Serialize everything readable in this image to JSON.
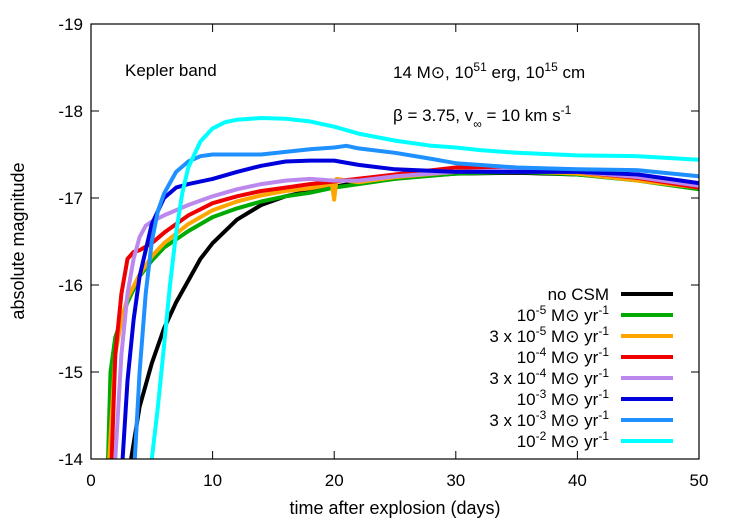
{
  "chart_data": {
    "type": "line",
    "title": "",
    "xlabel": "time after explosion (days)",
    "ylabel": "absolute magnitude",
    "xlim": [
      0,
      50
    ],
    "ylim": [
      -14,
      -19
    ],
    "y_inverted": true,
    "xticks": [
      0,
      10,
      20,
      30,
      40,
      50
    ],
    "xtick_labels": [
      "0",
      "10",
      "20",
      "30",
      "40",
      "50"
    ],
    "yticks": [
      -14,
      -15,
      -16,
      -17,
      -18,
      -19
    ],
    "ytick_labels": [
      "-14",
      "-15",
      "-16",
      "-17",
      "-18",
      "-19"
    ],
    "grid": false,
    "legend_position": "bottom-right",
    "annotations": {
      "band": "Kepler band",
      "params_line1": "14 M⊙, 10^51 erg, 10^15 cm",
      "params_line2": "β = 3.75, v∞ = 10 km s^-1"
    },
    "series": [
      {
        "name": "no CSM",
        "color": "#000000",
        "x": [
          3.3,
          4.0,
          5.0,
          6.0,
          7.0,
          8.0,
          9.0,
          10.0,
          12.0,
          14.0,
          16.0,
          18.0,
          20.0,
          22.0,
          25.0,
          28.0,
          30.0,
          35.0,
          40.0,
          45.0,
          50.0
        ],
        "y": [
          -14.0,
          -14.6,
          -15.1,
          -15.5,
          -15.8,
          -16.05,
          -16.3,
          -16.48,
          -16.75,
          -16.92,
          -17.02,
          -17.08,
          -17.13,
          -17.18,
          -17.23,
          -17.26,
          -17.28,
          -17.29,
          -17.27,
          -17.22,
          -17.14
        ]
      },
      {
        "name": "10^-5 M⊙ yr^-1",
        "color": "#00aa00",
        "x": [
          1.4,
          1.6,
          2.0,
          3.0,
          4.0,
          5.0,
          6.0,
          8.0,
          10.0,
          12.0,
          14.0,
          16.0,
          18.0,
          20.0,
          25.0,
          30.0,
          35.0,
          40.0,
          45.0,
          50.0
        ],
        "y": [
          -14.0,
          -15.0,
          -15.4,
          -15.8,
          -16.1,
          -16.28,
          -16.43,
          -16.62,
          -16.78,
          -16.88,
          -16.96,
          -17.02,
          -17.06,
          -17.12,
          -17.22,
          -17.28,
          -17.3,
          -17.27,
          -17.2,
          -17.1
        ]
      },
      {
        "name": "3 x 10^-5 M⊙ yr^-1",
        "color": "#ffa500",
        "x": [
          1.5,
          2.0,
          2.5,
          3.0,
          4.0,
          5.0,
          6.0,
          8.0,
          10.0,
          12.0,
          14.0,
          16.0,
          18.0,
          19.8,
          20.0,
          20.2,
          22.0,
          25.0,
          30.0,
          35.0,
          40.0,
          45.0,
          50.0
        ],
        "y": [
          -14.0,
          -15.2,
          -15.6,
          -15.85,
          -16.12,
          -16.33,
          -16.48,
          -16.7,
          -16.86,
          -16.96,
          -17.03,
          -17.08,
          -17.11,
          -17.16,
          -16.98,
          -17.22,
          -17.18,
          -17.24,
          -17.3,
          -17.31,
          -17.28,
          -17.2,
          -17.12
        ]
      },
      {
        "name": "10^-4 M⊙ yr^-1",
        "color": "#ee0000",
        "x": [
          1.7,
          2.0,
          2.5,
          3.0,
          3.5,
          4.0,
          5.0,
          6.0,
          8.0,
          10.0,
          12.0,
          14.0,
          16.0,
          18.0,
          20.0,
          25.0,
          30.0,
          35.0,
          40.0,
          45.0,
          50.0
        ],
        "y": [
          -14.0,
          -15.2,
          -15.9,
          -16.3,
          -16.38,
          -16.4,
          -16.48,
          -16.6,
          -16.8,
          -16.94,
          -17.02,
          -17.08,
          -17.12,
          -17.16,
          -17.19,
          -17.27,
          -17.35,
          -17.34,
          -17.3,
          -17.23,
          -17.12
        ]
      },
      {
        "name": "3 x 10^-4 M⊙ yr^-1",
        "color": "#bb88ee",
        "x": [
          2.0,
          2.5,
          3.0,
          3.5,
          4.0,
          4.5,
          5.0,
          6.0,
          8.0,
          10.0,
          12.0,
          14.0,
          16.0,
          18.0,
          20.0,
          22.0,
          25.0,
          30.0,
          35.0,
          40.0,
          45.0,
          50.0
        ],
        "y": [
          -14.0,
          -15.2,
          -15.9,
          -16.3,
          -16.55,
          -16.68,
          -16.73,
          -16.8,
          -16.92,
          -17.02,
          -17.1,
          -17.16,
          -17.2,
          -17.22,
          -17.2,
          -17.2,
          -17.25,
          -17.3,
          -17.32,
          -17.3,
          -17.24,
          -17.14
        ]
      },
      {
        "name": "10^-3 M⊙ yr^-1",
        "color": "#0000dd",
        "x": [
          2.6,
          3.0,
          3.5,
          4.0,
          5.0,
          6.0,
          7.0,
          8.0,
          10.0,
          12.0,
          14.0,
          16.0,
          18.0,
          20.0,
          22.0,
          25.0,
          30.0,
          35.0,
          40.0,
          45.0,
          50.0
        ],
        "y": [
          -14.0,
          -14.9,
          -15.6,
          -16.1,
          -16.7,
          -17.0,
          -17.12,
          -17.16,
          -17.22,
          -17.3,
          -17.37,
          -17.42,
          -17.43,
          -17.43,
          -17.38,
          -17.33,
          -17.3,
          -17.3,
          -17.3,
          -17.27,
          -17.17
        ]
      },
      {
        "name": "3 x 10^-3 M⊙ yr^-1",
        "color": "#1e90ff",
        "x": [
          3.6,
          4.0,
          4.5,
          5.0,
          5.5,
          6.0,
          7.0,
          8.0,
          9.0,
          10.0,
          12.0,
          14.0,
          16.0,
          18.0,
          20.0,
          21.0,
          22.0,
          25.0,
          28.0,
          30.0,
          35.0,
          40.0,
          45.0,
          50.0
        ],
        "y": [
          -14.0,
          -15.0,
          -15.9,
          -16.5,
          -16.85,
          -17.05,
          -17.3,
          -17.42,
          -17.48,
          -17.5,
          -17.5,
          -17.5,
          -17.53,
          -17.56,
          -17.58,
          -17.6,
          -17.57,
          -17.52,
          -17.45,
          -17.4,
          -17.35,
          -17.33,
          -17.32,
          -17.25
        ]
      },
      {
        "name": "10^-2 M⊙ yr^-1",
        "color": "#00ffff",
        "x": [
          5.0,
          5.5,
          6.0,
          6.5,
          7.0,
          7.5,
          8.0,
          9.0,
          10.0,
          11.0,
          12.0,
          14.0,
          16.0,
          18.0,
          20.0,
          22.0,
          25.0,
          28.0,
          30.0,
          32.0,
          35.0,
          40.0,
          45.0,
          50.0
        ],
        "y": [
          -14.0,
          -14.6,
          -15.3,
          -16.0,
          -16.6,
          -17.05,
          -17.35,
          -17.65,
          -17.8,
          -17.87,
          -17.9,
          -17.92,
          -17.91,
          -17.88,
          -17.82,
          -17.74,
          -17.66,
          -17.6,
          -17.58,
          -17.55,
          -17.52,
          -17.49,
          -17.48,
          -17.44
        ]
      }
    ]
  }
}
